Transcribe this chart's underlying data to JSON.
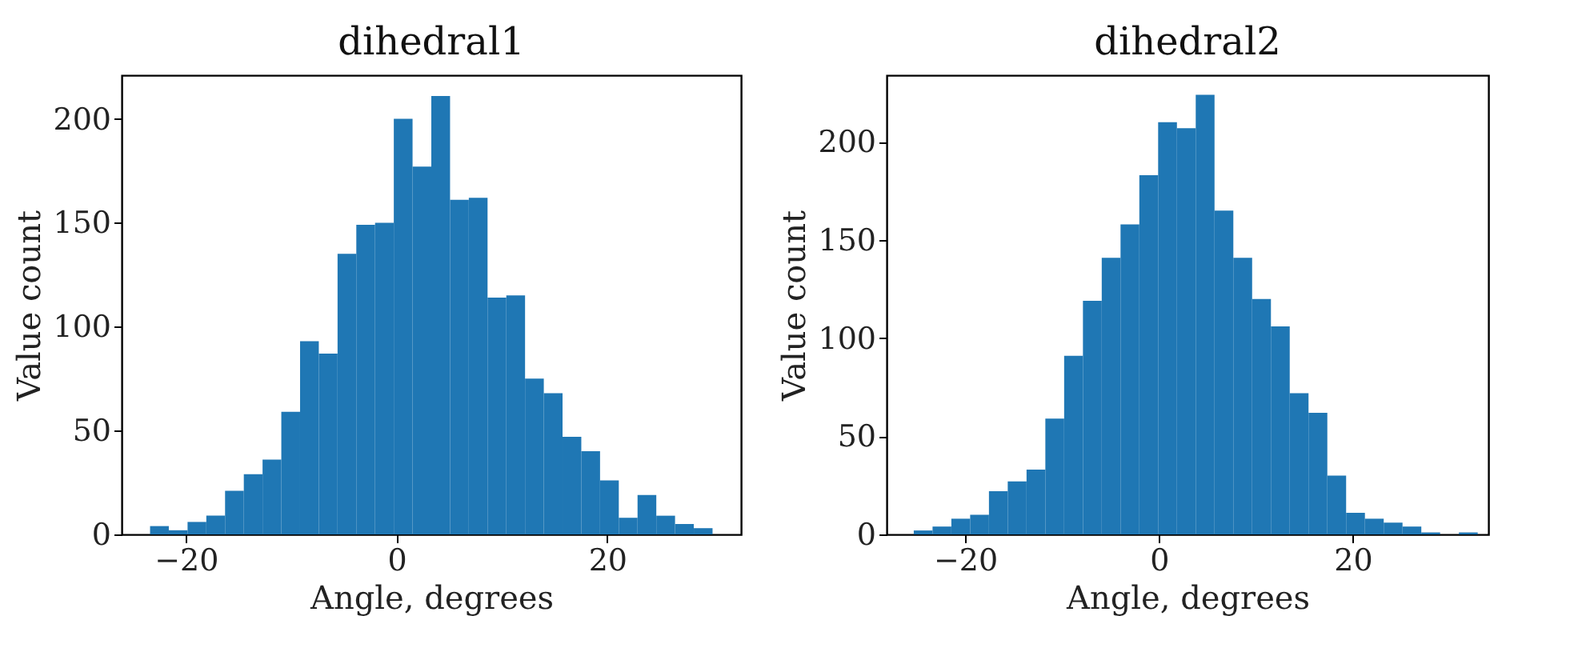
{
  "chart_data": [
    {
      "type": "histogram",
      "title": "dihedral1",
      "xlabel": "Angle, degrees",
      "ylabel": "Value count",
      "color": "#1f77b4",
      "grid": false,
      "bins": [
        -23.4,
        -21.62,
        -19.84,
        -18.06,
        -16.28,
        -14.5,
        -12.72,
        -10.94,
        -9.16,
        -7.38,
        -5.6,
        -3.82,
        -2.04,
        -0.26,
        1.52,
        3.3,
        5.08,
        6.86,
        8.64,
        10.42,
        12.2,
        13.98,
        15.76,
        17.54,
        19.32,
        21.1,
        22.88,
        24.66,
        26.44,
        28.22,
        30.0
      ],
      "values": [
        4,
        2,
        6,
        9,
        21,
        29,
        36,
        59,
        93,
        87,
        135,
        149,
        150,
        200,
        177,
        211,
        161,
        162,
        114,
        115,
        75,
        68,
        47,
        40,
        26,
        8,
        19,
        9,
        5,
        3
      ],
      "xlim": [
        -26.1,
        32.7
      ],
      "xticks": [
        -20,
        0,
        20
      ],
      "ylim": [
        0,
        221
      ],
      "yticks": [
        0,
        50,
        100,
        150,
        200
      ]
    },
    {
      "type": "histogram",
      "title": "dihedral2",
      "xlabel": "Angle, degrees",
      "ylabel": "Value count",
      "color": "#1f77b4",
      "grid": false,
      "bins": [
        -25.3,
        -23.36,
        -21.42,
        -19.48,
        -17.54,
        -15.6,
        -13.66,
        -11.72,
        -9.78,
        -7.84,
        -5.9,
        -3.96,
        -2.02,
        -0.08,
        1.86,
        3.8,
        5.74,
        7.68,
        9.62,
        11.56,
        13.5,
        15.44,
        17.38,
        19.32,
        21.26,
        23.2,
        25.14,
        27.08,
        29.02,
        30.96,
        32.9
      ],
      "values": [
        2,
        4,
        8,
        10,
        22,
        27,
        33,
        59,
        91,
        119,
        141,
        158,
        183,
        210,
        207,
        224,
        165,
        141,
        120,
        106,
        72,
        62,
        30,
        11,
        8,
        6,
        4,
        1,
        0,
        1
      ],
      "xlim": [
        -28.1,
        34.0
      ],
      "xticks": [
        -20,
        0,
        20
      ],
      "ylim": [
        0,
        234
      ],
      "yticks": [
        0,
        50,
        100,
        150,
        200
      ]
    }
  ]
}
